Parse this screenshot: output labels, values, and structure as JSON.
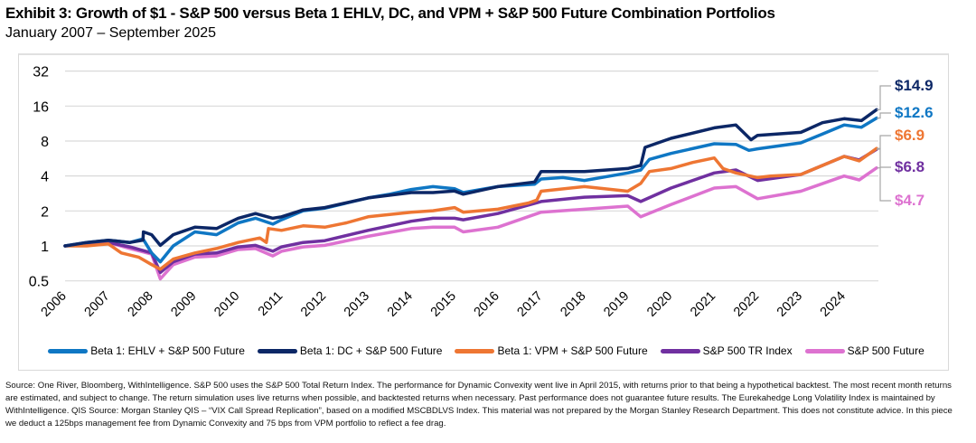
{
  "header": {
    "title": "Exhibit 3: Growth of $1 - S&P 500 versus Beta 1 EHLV, DC, and VPM + S&P 500 Future Combination Portfolios",
    "subtitle": "January 2007 – September 2025"
  },
  "chart_data": {
    "type": "line",
    "title": "Exhibit 3: Growth of $1 - S&P 500 versus Beta 1 EHLV, DC, and VPM + S&P 500 Future Combination Portfolios",
    "subtitle": "January 2007 – September 2025",
    "y_scale": "log2",
    "ylim": [
      0.5,
      32
    ],
    "y_ticks": [
      "0.5",
      "1",
      "2",
      "4",
      "8",
      "16",
      "32"
    ],
    "y_tick_values": [
      0.5,
      1,
      2,
      4,
      8,
      16,
      32
    ],
    "xlim": [
      2006,
      2024.75
    ],
    "x_ticks": [
      "2006",
      "2007",
      "2008",
      "2009",
      "2010",
      "2011",
      "2012",
      "2013",
      "2014",
      "2015",
      "2016",
      "2017",
      "2018",
      "2019",
      "2020",
      "2021",
      "2022",
      "2023",
      "2024"
    ],
    "grid": "horizontal",
    "legend_position": "bottom",
    "series": [
      {
        "name": "Beta 1: EHLV + S&P 500 Future",
        "color": "#0f77c4",
        "end_label": "$12.6",
        "points": [
          [
            2006,
            1
          ],
          [
            2006.5,
            1.07
          ],
          [
            2007,
            1.12
          ],
          [
            2007.5,
            1.07
          ],
          [
            2007.8,
            1.15
          ],
          [
            2008,
            0.87
          ],
          [
            2008.2,
            0.73
          ],
          [
            2008.5,
            1.0
          ],
          [
            2009,
            1.32
          ],
          [
            2009.5,
            1.25
          ],
          [
            2010,
            1.58
          ],
          [
            2010.4,
            1.73
          ],
          [
            2010.8,
            1.54
          ],
          [
            2011,
            1.68
          ],
          [
            2011.5,
            2.01
          ],
          [
            2012,
            2.11
          ],
          [
            2012.5,
            2.34
          ],
          [
            2013,
            2.59
          ],
          [
            2013.5,
            2.79
          ],
          [
            2014,
            3.06
          ],
          [
            2014.5,
            3.24
          ],
          [
            2015,
            3.11
          ],
          [
            2015.2,
            2.88
          ],
          [
            2016,
            3.24
          ],
          [
            2016.85,
            3.4
          ],
          [
            2017,
            3.77
          ],
          [
            2017.5,
            3.88
          ],
          [
            2018,
            3.66
          ],
          [
            2019,
            4.25
          ],
          [
            2019.3,
            4.51
          ],
          [
            2019.5,
            5.56
          ],
          [
            2020,
            6.26
          ],
          [
            2021,
            7.58
          ],
          [
            2021.5,
            7.49
          ],
          [
            2021.8,
            6.65
          ],
          [
            2022,
            6.85
          ],
          [
            2023,
            7.72
          ],
          [
            2023.5,
            9.2
          ],
          [
            2024,
            11.0
          ],
          [
            2024.4,
            10.5
          ],
          [
            2024.75,
            12.6
          ]
        ]
      },
      {
        "name": "Beta 1: DC + S&P 500 Future",
        "color": "#0c2766",
        "end_label": "$14.9",
        "points": [
          [
            2006,
            1
          ],
          [
            2006.5,
            1.07
          ],
          [
            2007,
            1.12
          ],
          [
            2007.5,
            1.07
          ],
          [
            2007.8,
            1.12
          ],
          [
            2007.81,
            1.32
          ],
          [
            2008,
            1.25
          ],
          [
            2008.2,
            1.01
          ],
          [
            2008.5,
            1.25
          ],
          [
            2009,
            1.45
          ],
          [
            2009.5,
            1.41
          ],
          [
            2010,
            1.73
          ],
          [
            2010.4,
            1.9
          ],
          [
            2010.8,
            1.73
          ],
          [
            2011,
            1.78
          ],
          [
            2011.5,
            2.04
          ],
          [
            2012,
            2.14
          ],
          [
            2013,
            2.59
          ],
          [
            2014,
            2.88
          ],
          [
            2014.5,
            2.88
          ],
          [
            2015,
            2.97
          ],
          [
            2015.2,
            2.79
          ],
          [
            2016,
            3.24
          ],
          [
            2016.85,
            3.55
          ],
          [
            2017,
            4.37
          ],
          [
            2018,
            4.37
          ],
          [
            2019,
            4.64
          ],
          [
            2019.3,
            4.93
          ],
          [
            2019.4,
            7.06
          ],
          [
            2020,
            8.44
          ],
          [
            2021,
            10.4
          ],
          [
            2021.5,
            11.0
          ],
          [
            2021.85,
            8.2
          ],
          [
            2022,
            8.95
          ],
          [
            2023,
            9.5
          ],
          [
            2023.5,
            11.5
          ],
          [
            2024,
            12.45
          ],
          [
            2024.4,
            12.0
          ],
          [
            2024.75,
            14.9
          ]
        ]
      },
      {
        "name": "Beta 1: VPM + S&P 500 Future",
        "color": "#ee7633",
        "end_label": "$6.9",
        "points": [
          [
            2006,
            1
          ],
          [
            2006.5,
            1.0
          ],
          [
            2007,
            1.04
          ],
          [
            2007.3,
            0.87
          ],
          [
            2007.7,
            0.8
          ],
          [
            2008,
            0.69
          ],
          [
            2008.2,
            0.63
          ],
          [
            2008.5,
            0.77
          ],
          [
            2009,
            0.87
          ],
          [
            2009.5,
            0.95
          ],
          [
            2010,
            1.07
          ],
          [
            2010.5,
            1.17
          ],
          [
            2010.65,
            1.07
          ],
          [
            2010.7,
            1.41
          ],
          [
            2011,
            1.36
          ],
          [
            2011.5,
            1.49
          ],
          [
            2012,
            1.45
          ],
          [
            2012.5,
            1.58
          ],
          [
            2013,
            1.78
          ],
          [
            2014,
            1.95
          ],
          [
            2014.5,
            2.01
          ],
          [
            2015,
            2.14
          ],
          [
            2015.2,
            1.95
          ],
          [
            2016,
            2.07
          ],
          [
            2016.7,
            2.34
          ],
          [
            2016.9,
            2.48
          ],
          [
            2017,
            2.96
          ],
          [
            2018,
            3.24
          ],
          [
            2019,
            2.96
          ],
          [
            2019.3,
            3.45
          ],
          [
            2019.5,
            4.37
          ],
          [
            2020,
            4.64
          ],
          [
            2020.5,
            5.23
          ],
          [
            2021,
            5.72
          ],
          [
            2021.2,
            4.64
          ],
          [
            2021.5,
            4.25
          ],
          [
            2022,
            3.88
          ],
          [
            2022.3,
            4.0
          ],
          [
            2023,
            4.12
          ],
          [
            2024,
            5.9
          ],
          [
            2024.35,
            5.4
          ],
          [
            2024.75,
            6.9
          ]
        ]
      },
      {
        "name": "S&P 500 TR Index",
        "color": "#7030a0",
        "end_label": "$6.8",
        "points": [
          [
            2006,
            1
          ],
          [
            2007,
            1.07
          ],
          [
            2007.5,
            0.98
          ],
          [
            2008,
            0.87
          ],
          [
            2008.2,
            0.59
          ],
          [
            2008.5,
            0.73
          ],
          [
            2009,
            0.85
          ],
          [
            2009.5,
            0.87
          ],
          [
            2010,
            0.98
          ],
          [
            2010.4,
            1.01
          ],
          [
            2010.8,
            0.9
          ],
          [
            2011,
            0.98
          ],
          [
            2011.5,
            1.07
          ],
          [
            2012,
            1.11
          ],
          [
            2013,
            1.36
          ],
          [
            2014,
            1.63
          ],
          [
            2014.5,
            1.73
          ],
          [
            2015,
            1.73
          ],
          [
            2015.2,
            1.68
          ],
          [
            2016,
            1.9
          ],
          [
            2017,
            2.41
          ],
          [
            2018,
            2.63
          ],
          [
            2019,
            2.71
          ],
          [
            2019.3,
            2.41
          ],
          [
            2020,
            3.15
          ],
          [
            2021,
            4.25
          ],
          [
            2021.5,
            4.51
          ],
          [
            2022,
            3.66
          ],
          [
            2023,
            4.12
          ],
          [
            2024,
            5.9
          ],
          [
            2024.35,
            5.5
          ],
          [
            2024.75,
            6.8
          ]
        ]
      },
      {
        "name": "S&P 500 Future",
        "color": "#dd72d0",
        "end_label": "$4.7",
        "points": [
          [
            2006,
            1
          ],
          [
            2007,
            1.07
          ],
          [
            2007.5,
            0.95
          ],
          [
            2008,
            0.85
          ],
          [
            2008.2,
            0.52
          ],
          [
            2008.5,
            0.69
          ],
          [
            2009,
            0.8
          ],
          [
            2009.5,
            0.82
          ],
          [
            2010,
            0.93
          ],
          [
            2010.4,
            0.95
          ],
          [
            2010.8,
            0.82
          ],
          [
            2011,
            0.9
          ],
          [
            2011.5,
            0.98
          ],
          [
            2012,
            1.01
          ],
          [
            2013,
            1.21
          ],
          [
            2014,
            1.41
          ],
          [
            2014.5,
            1.45
          ],
          [
            2015,
            1.45
          ],
          [
            2015.2,
            1.32
          ],
          [
            2016,
            1.45
          ],
          [
            2017,
            1.95
          ],
          [
            2018,
            2.07
          ],
          [
            2019,
            2.2
          ],
          [
            2019.3,
            1.78
          ],
          [
            2020,
            2.27
          ],
          [
            2021,
            3.15
          ],
          [
            2021.5,
            3.24
          ],
          [
            2022,
            2.55
          ],
          [
            2023,
            2.96
          ],
          [
            2024,
            4.0
          ],
          [
            2024.35,
            3.7
          ],
          [
            2024.75,
            4.7
          ]
        ]
      }
    ]
  },
  "footer": {
    "text": "Source: One River, Bloomberg, WithIntelligence. S&P 500 uses the S&P 500 Total Return Index. The performance for Dynamic Convexity went live in April 2015, with returns prior to that being a hypothetical backtest. The most recent month returns are estimated, and subject to change. The return simulation uses live returns when possible, and backtested returns when necessary. Past performance does not guarantee future results. The Eurekahedge Long Volatility Index is maintained by WithIntelligence. QIS Source: Morgan Stanley QIS – “VIX Call Spread Replication”, based on a modified MSCBDLVS Index. This material was not prepared by the Morgan Stanley Research Department. This does not constitute advice. In this piece we deduct a 125bps management fee from Dynamic Convexity and 75 bps from VPM portfolio to reflect a fee drag."
  }
}
